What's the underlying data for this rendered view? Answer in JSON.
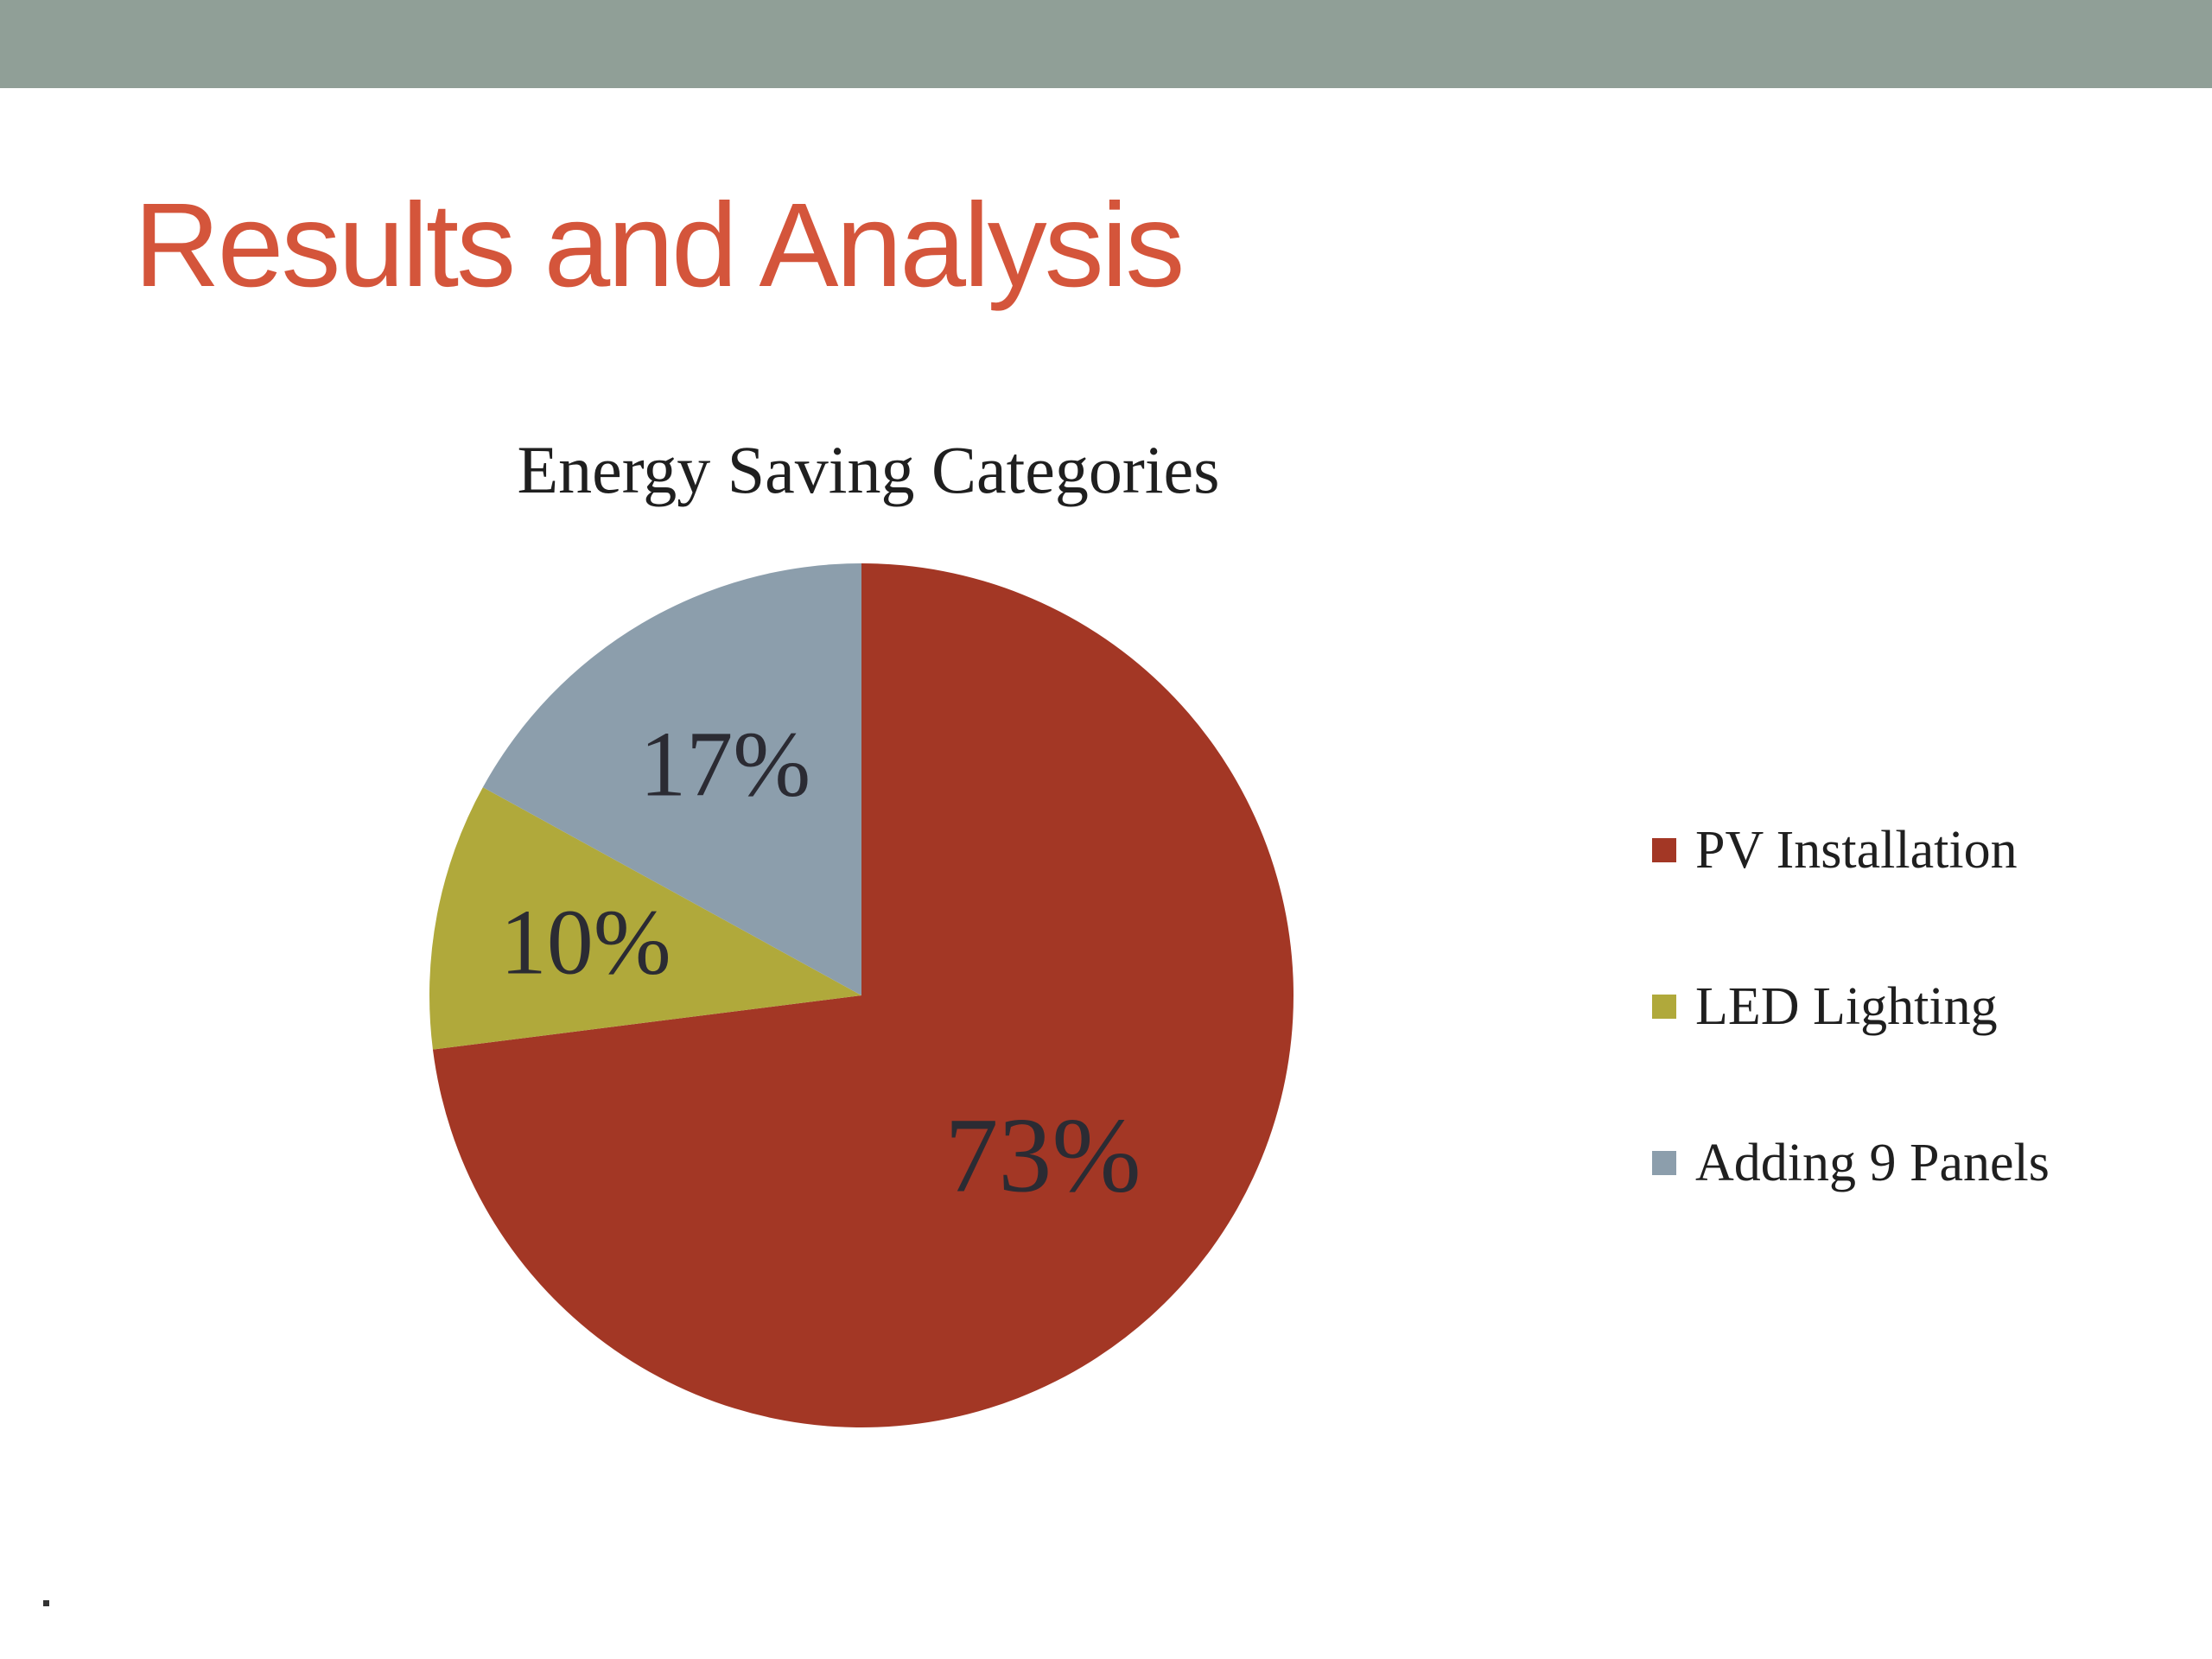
{
  "slide": {
    "title": "Results and Analysis",
    "title_color": "#d4553b",
    "band_color": "#909f97",
    "footer_mark": "."
  },
  "chart_data": {
    "type": "pie",
    "title": "Energy Saving Categories",
    "categories": [
      "PV Installation",
      "LED Lighting",
      "Adding 9 Panels"
    ],
    "values": [
      73,
      10,
      17
    ],
    "labels": [
      "73%",
      "10%",
      "17%"
    ],
    "colors": [
      "#a33725",
      "#b0a93b",
      "#8c9eac"
    ],
    "start_angle": "12 o'clock",
    "direction": "clockwise",
    "legend_position": "right"
  }
}
